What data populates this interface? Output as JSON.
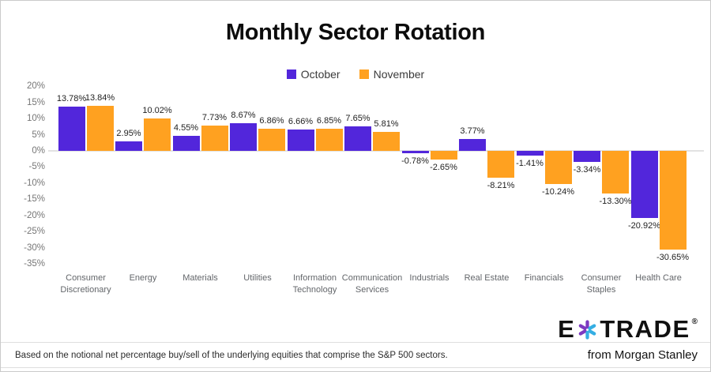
{
  "title": "Monthly Sector Rotation",
  "legend": {
    "items": [
      {
        "label": "October",
        "color": "#5226DB"
      },
      {
        "label": "November",
        "color": "#FFA120"
      }
    ]
  },
  "chart_data": {
    "type": "bar",
    "title": "Monthly Sector Rotation",
    "xlabel": "",
    "ylabel": "",
    "ylim": [
      -35,
      20
    ],
    "grid": "zero-baseline-only",
    "legend_position": "top-center",
    "y_ticks": [
      20,
      15,
      10,
      5,
      0,
      -5,
      -10,
      -15,
      -20,
      -25,
      -30,
      -35
    ],
    "y_tick_suffix": "%",
    "categories": [
      "Consumer Discretionary",
      "Energy",
      "Materials",
      "Utilities",
      "Information Technology",
      "Communication Services",
      "Industrials",
      "Real Estate",
      "Financials",
      "Consumer Staples",
      "Health Care"
    ],
    "series": [
      {
        "name": "October",
        "color": "#5226DB",
        "values": [
          13.78,
          2.95,
          4.55,
          8.67,
          6.66,
          7.65,
          -0.78,
          3.77,
          -1.41,
          -3.34,
          -20.92
        ]
      },
      {
        "name": "November",
        "color": "#FFA120",
        "values": [
          13.84,
          10.02,
          7.73,
          6.86,
          6.85,
          5.81,
          -2.65,
          -8.21,
          -10.24,
          -13.3,
          -30.65
        ]
      }
    ],
    "value_label_format": "two-decimals-percent"
  },
  "footer": {
    "note": "Based on the notional net percentage buy/sell of the underlying equities that comprise the S&P 500 sectors.",
    "brand": {
      "wordmark_left": "E",
      "wordmark_right": "TRADE",
      "registered": "®",
      "tagline": "from Morgan Stanley",
      "asterisk_purple": "#7D3AC1",
      "asterisk_cyan": "#35AEE3"
    }
  }
}
